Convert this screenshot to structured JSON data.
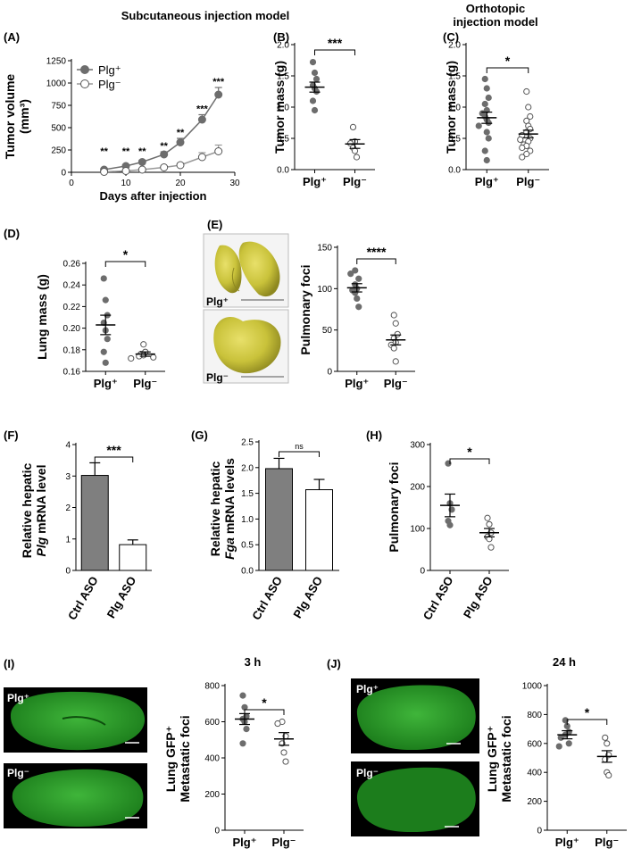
{
  "headers": {
    "subcutaneous": "Subcutaneous injection model",
    "orthotopic_1": "Orthotopic",
    "orthotopic_2": "injection model",
    "time_3h": "3 h",
    "time_24h": "24 h"
  },
  "colors": {
    "filled": "#6d6d6d",
    "open": "#ffffff",
    "bar_dark": "#7f7f7f",
    "gfp": "#1f8f1f",
    "lung": "#b8b22a"
  },
  "photo_labels": {
    "E_top": "Plg⁺",
    "E_bottom": "Plg⁻",
    "I_top": "Plg⁺",
    "I_bottom": "Plg⁻",
    "J_top": "Plg⁺",
    "J_bottom": "Plg⁻"
  },
  "chart_data": [
    {
      "id": "A",
      "panel_label": "(A)",
      "type": "line",
      "xlabel": "Days after injection",
      "ylabel_1": "Tumor volume",
      "ylabel_2": "(mm³)",
      "xlim": [
        0,
        30
      ],
      "ylim": [
        0,
        1250
      ],
      "xticks": [
        0,
        10,
        20,
        30
      ],
      "yticks": [
        0,
        250,
        500,
        750,
        1000,
        1250
      ],
      "series": [
        {
          "name": "Plg⁺",
          "x": [
            6,
            10,
            13,
            17,
            20,
            24,
            27
          ],
          "y": [
            30,
            70,
            115,
            200,
            335,
            590,
            870
          ],
          "err": [
            10,
            15,
            20,
            30,
            45,
            55,
            80
          ]
        },
        {
          "name": "Plg⁻",
          "x": [
            6,
            10,
            13,
            17,
            20,
            24,
            27
          ],
          "y": [
            5,
            15,
            30,
            55,
            80,
            170,
            235
          ],
          "err": [
            5,
            5,
            10,
            15,
            20,
            50,
            70
          ]
        }
      ],
      "significance": [
        "**",
        "**",
        "**",
        "**",
        "**",
        "***",
        "***"
      ]
    },
    {
      "id": "B",
      "panel_label": "(B)",
      "type": "scatter",
      "ylabel": "Tumor mass (g)",
      "categories": [
        "Plg⁺",
        "Plg⁻"
      ],
      "ylim": [
        0,
        2.0
      ],
      "yticks": [
        "0.0",
        "0.5",
        "1.0",
        "1.5",
        "2.0"
      ],
      "groups": [
        {
          "name": "Plg⁺",
          "values": [
            1.72,
            1.55,
            1.45,
            1.35,
            1.3,
            1.25,
            1.1,
            0.95
          ],
          "mean": 1.32,
          "sem": 0.08
        },
        {
          "name": "Plg⁻",
          "values": [
            0.68,
            0.45,
            0.42,
            0.35,
            0.3,
            0.2
          ],
          "mean": 0.41,
          "sem": 0.07
        }
      ],
      "significance": "***"
    },
    {
      "id": "C",
      "panel_label": "(C)",
      "type": "scatter",
      "ylabel": "Tumor mass (g)",
      "categories": [
        "Plg⁺",
        "Plg⁻"
      ],
      "ylim": [
        0,
        2.0
      ],
      "yticks": [
        "0.0",
        "0.5",
        "1.0",
        "1.5",
        "2.0"
      ],
      "groups": [
        {
          "name": "Plg⁺",
          "values": [
            1.45,
            1.3,
            1.15,
            1.05,
            0.95,
            0.9,
            0.85,
            0.8,
            0.75,
            0.7,
            0.6,
            0.5,
            0.3,
            0.15
          ],
          "mean": 0.83,
          "sem": 0.09
        },
        {
          "name": "Plg⁻",
          "values": [
            1.25,
            1.0,
            0.85,
            0.78,
            0.7,
            0.65,
            0.6,
            0.55,
            0.5,
            0.48,
            0.45,
            0.4,
            0.38,
            0.35,
            0.3,
            0.25,
            0.2
          ],
          "mean": 0.57,
          "sem": 0.06
        }
      ],
      "significance": "*"
    },
    {
      "id": "D",
      "panel_label": "(D)",
      "type": "scatter",
      "ylabel": "Lung mass (g)",
      "categories": [
        "Plg⁺",
        "Plg⁻"
      ],
      "ylim": [
        0.16,
        0.26
      ],
      "yticks": [
        "0.16",
        "0.18",
        "0.20",
        "0.22",
        "0.24",
        "0.26"
      ],
      "groups": [
        {
          "name": "Plg⁺",
          "values": [
            0.246,
            0.226,
            0.212,
            0.205,
            0.198,
            0.19,
            0.178,
            0.168
          ],
          "mean": 0.203,
          "sem": 0.009
        },
        {
          "name": "Plg⁻",
          "values": [
            0.185,
            0.178,
            0.176,
            0.175,
            0.174,
            0.173,
            0.172
          ],
          "mean": 0.176,
          "sem": 0.002
        }
      ],
      "significance": "*"
    },
    {
      "id": "E",
      "panel_label": "(E)",
      "type": "scatter",
      "ylabel": "Pulmonary foci",
      "categories": [
        "Plg⁺",
        "Plg⁻"
      ],
      "ylim": [
        0,
        150
      ],
      "yticks": [
        "0",
        "50",
        "100",
        "150"
      ],
      "groups": [
        {
          "name": "Plg⁺",
          "values": [
            122,
            118,
            112,
            105,
            100,
            98,
            95,
            88,
            78
          ],
          "mean": 101,
          "sem": 5
        },
        {
          "name": "Plg⁻",
          "values": [
            68,
            58,
            45,
            40,
            35,
            32,
            28,
            12
          ],
          "mean": 38,
          "sem": 6
        }
      ],
      "significance": "****"
    },
    {
      "id": "F",
      "panel_label": "(F)",
      "type": "bar",
      "ylabel_1": "Relative hepatic",
      "ylabel_2_italic": "Plg",
      "ylabel_2_rest": " mRNA level",
      "categories": [
        "Ctrl ASO",
        "Plg ASO"
      ],
      "values": [
        3.02,
        0.82
      ],
      "err": [
        0.4,
        0.15
      ],
      "ylim": [
        0,
        4
      ],
      "yticks": [
        "0",
        "1",
        "2",
        "3",
        "4"
      ],
      "significance": "***"
    },
    {
      "id": "G",
      "panel_label": "(G)",
      "type": "bar",
      "ylabel_1": "Relative hepatic",
      "ylabel_2_italic": "Fga",
      "ylabel_2_rest": " mRNA levels",
      "categories": [
        "Ctrl ASO",
        "Plg ASO"
      ],
      "values": [
        1.98,
        1.57
      ],
      "err": [
        0.2,
        0.2
      ],
      "ylim": [
        0,
        2.5
      ],
      "yticks": [
        "0.0",
        "0.5",
        "1.0",
        "1.5",
        "2.0",
        "2.5"
      ],
      "significance": "ns"
    },
    {
      "id": "H",
      "panel_label": "(H)",
      "type": "scatter",
      "ylabel": "Pulmonary foci",
      "categories": [
        "Ctrl ASO",
        "Plg ASO"
      ],
      "ylim": [
        0,
        300
      ],
      "yticks": [
        "0",
        "100",
        "200",
        "300"
      ],
      "groups": [
        {
          "name": "Ctrl ASO",
          "values": [
            255,
            160,
            145,
            118,
            108
          ],
          "mean": 155,
          "sem": 27
        },
        {
          "name": "Plg ASO",
          "values": [
            125,
            110,
            90,
            80,
            75,
            55
          ],
          "mean": 90,
          "sem": 10
        }
      ],
      "significance": "*"
    },
    {
      "id": "I",
      "panel_label": "(I)",
      "type": "scatter",
      "ylabel_1": "Lung GFP⁺",
      "ylabel_2": "Metastatic foci",
      "categories": [
        "Plg⁺",
        "Plg⁻"
      ],
      "ylim": [
        0,
        800
      ],
      "yticks": [
        "0",
        "200",
        "400",
        "600",
        "800"
      ],
      "groups": [
        {
          "name": "Plg⁺",
          "values": [
            745,
            680,
            630,
            615,
            600,
            560,
            480
          ],
          "mean": 615,
          "sem": 30
        },
        {
          "name": "Plg⁻",
          "values": [
            600,
            590,
            520,
            480,
            430,
            380
          ],
          "mean": 505,
          "sem": 35
        }
      ],
      "significance": "*"
    },
    {
      "id": "J",
      "panel_label": "(J)",
      "type": "scatter",
      "ylabel_1": "Lung GFP⁺",
      "ylabel_2": "Metastatic foci",
      "categories": [
        "Plg⁺",
        "Plg⁻"
      ],
      "ylim": [
        0,
        1000
      ],
      "yticks": [
        "0",
        "200",
        "400",
        "600",
        "800",
        "1000"
      ],
      "groups": [
        {
          "name": "Plg⁺",
          "values": [
            760,
            720,
            680,
            660,
            640,
            600,
            580
          ],
          "mean": 660,
          "sem": 28
        },
        {
          "name": "Plg⁻",
          "values": [
            640,
            600,
            520,
            490,
            400,
            380
          ],
          "mean": 510,
          "sem": 40
        }
      ],
      "significance": "*"
    }
  ]
}
